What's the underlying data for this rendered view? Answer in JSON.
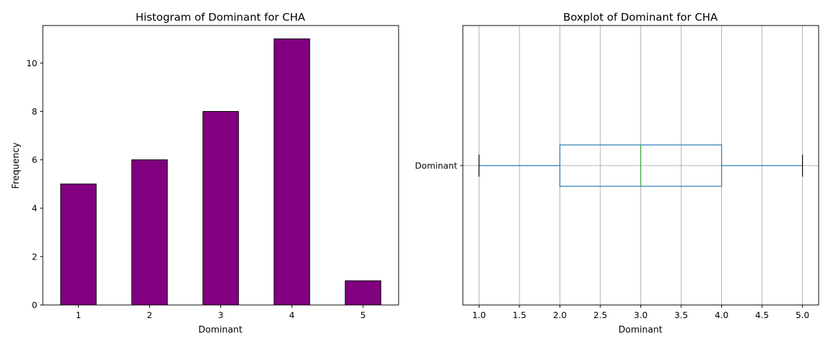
{
  "chart_data": [
    {
      "type": "bar",
      "title": "Histogram of Dominant for CHA",
      "xlabel": "Dominant",
      "ylabel": "Frequency",
      "categories": [
        "1",
        "2",
        "3",
        "4",
        "5"
      ],
      "values": [
        5,
        6,
        8,
        11,
        1
      ],
      "ylim": [
        0,
        11.55
      ],
      "yticks": [
        0,
        2,
        4,
        6,
        8,
        10
      ],
      "bar_color": "#800080",
      "edge_color": "#000000",
      "grid": false
    },
    {
      "type": "boxplot",
      "title": "Boxplot of Dominant for CHA",
      "xlabel": "Dominant",
      "ylabel": "",
      "category": "Dominant",
      "orientation": "horizontal",
      "stats": {
        "whisker_low": 1.0,
        "q1": 2.0,
        "median": 3.0,
        "q3": 4.0,
        "whisker_high": 5.0
      },
      "xlim": [
        0.8,
        5.2
      ],
      "xticks": [
        "1.0",
        "1.5",
        "2.0",
        "2.5",
        "3.0",
        "3.5",
        "4.0",
        "4.5",
        "5.0"
      ],
      "box_color": "#1f77b4",
      "median_color": "#2ca02c",
      "cap_color": "#000000",
      "grid": true
    }
  ]
}
